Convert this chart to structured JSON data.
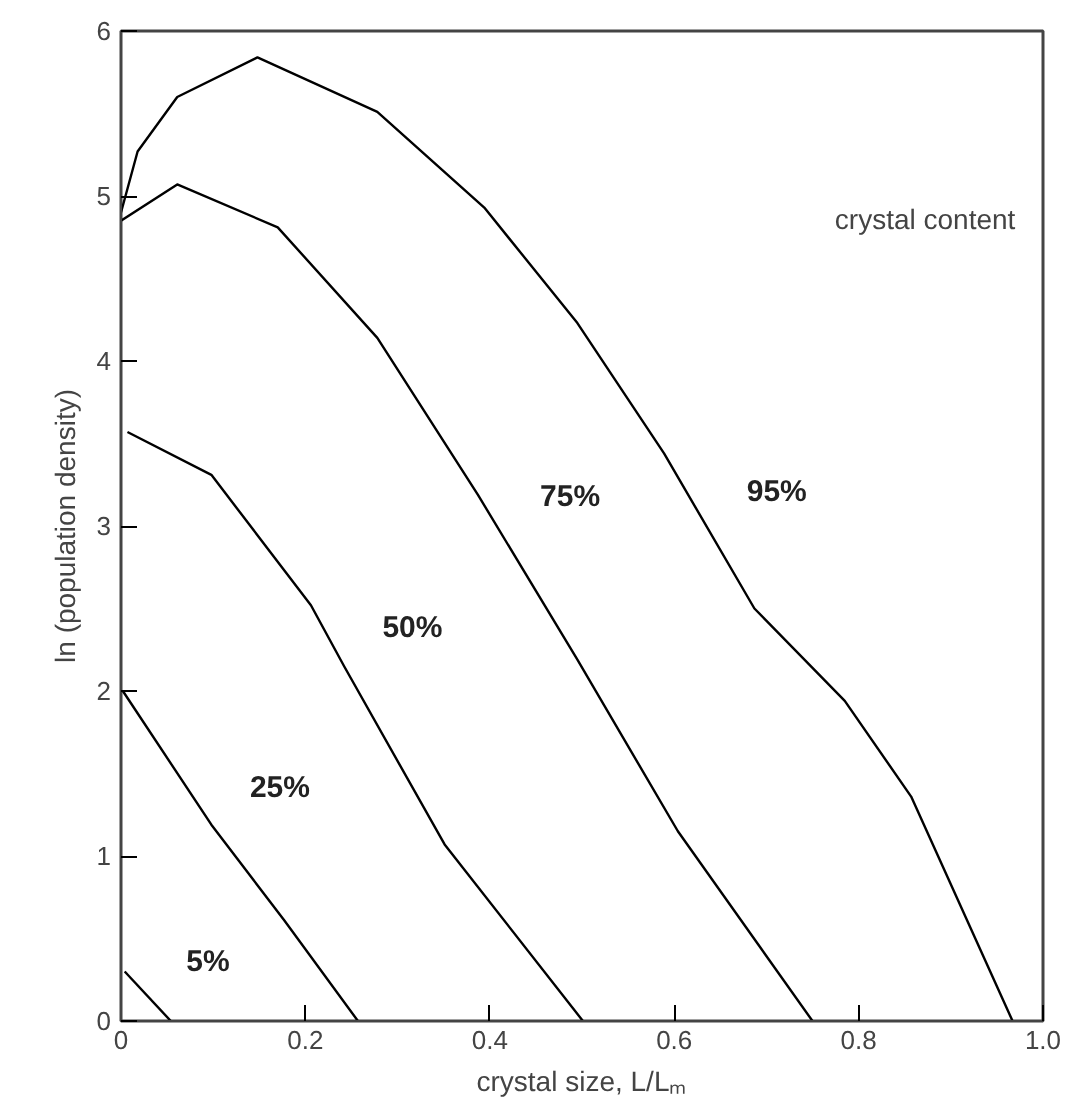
{
  "chart_data": {
    "type": "line",
    "xlabel": "crystal size, L/Lₘ",
    "ylabel": "ln (population density)",
    "xlim": [
      0,
      1.0
    ],
    "ylim": [
      0,
      6
    ],
    "xticks": [
      0,
      0.2,
      0.4,
      0.6,
      0.8,
      {
        "value": 1.0,
        "label": "1.0"
      }
    ],
    "yticks": [
      0,
      1,
      2,
      3,
      4,
      5,
      6
    ],
    "grid": false,
    "legend": false,
    "marker": "none",
    "line_style": "solid",
    "series": [
      {
        "name": "5%",
        "color": "#000000",
        "x": [
          0.004,
          0.054
        ],
        "values": [
          0.3,
          0
        ]
      },
      {
        "name": "25%",
        "color": "#000000",
        "x": [
          0.002,
          0.098,
          0.177,
          0.257
        ],
        "values": [
          2.0,
          1.19,
          0.61,
          0
        ]
      },
      {
        "name": "50%",
        "color": "#000000",
        "x": [
          0.007,
          0.098,
          0.206,
          0.242,
          0.351,
          0.501
        ],
        "values": [
          3.57,
          3.31,
          2.52,
          2.15,
          1.07,
          0
        ]
      },
      {
        "name": "75%",
        "color": "#000000",
        "x": [
          0,
          0.061,
          0.17,
          0.278,
          0.387,
          0.495,
          0.604,
          0.75
        ],
        "values": [
          4.85,
          5.07,
          4.81,
          4.14,
          3.19,
          2.19,
          1.15,
          0
        ]
      },
      {
        "name": "95%",
        "color": "#000000",
        "x": [
          0,
          0.018,
          0.061,
          0.148,
          0.278,
          0.394,
          0.495,
          0.589,
          0.687,
          0.785,
          0.857,
          0.967
        ],
        "values": [
          4.9,
          5.27,
          5.6,
          5.84,
          5.51,
          4.93,
          4.23,
          3.44,
          2.5,
          1.94,
          1.36,
          0
        ]
      }
    ],
    "annotations": [
      "crystal content"
    ]
  }
}
